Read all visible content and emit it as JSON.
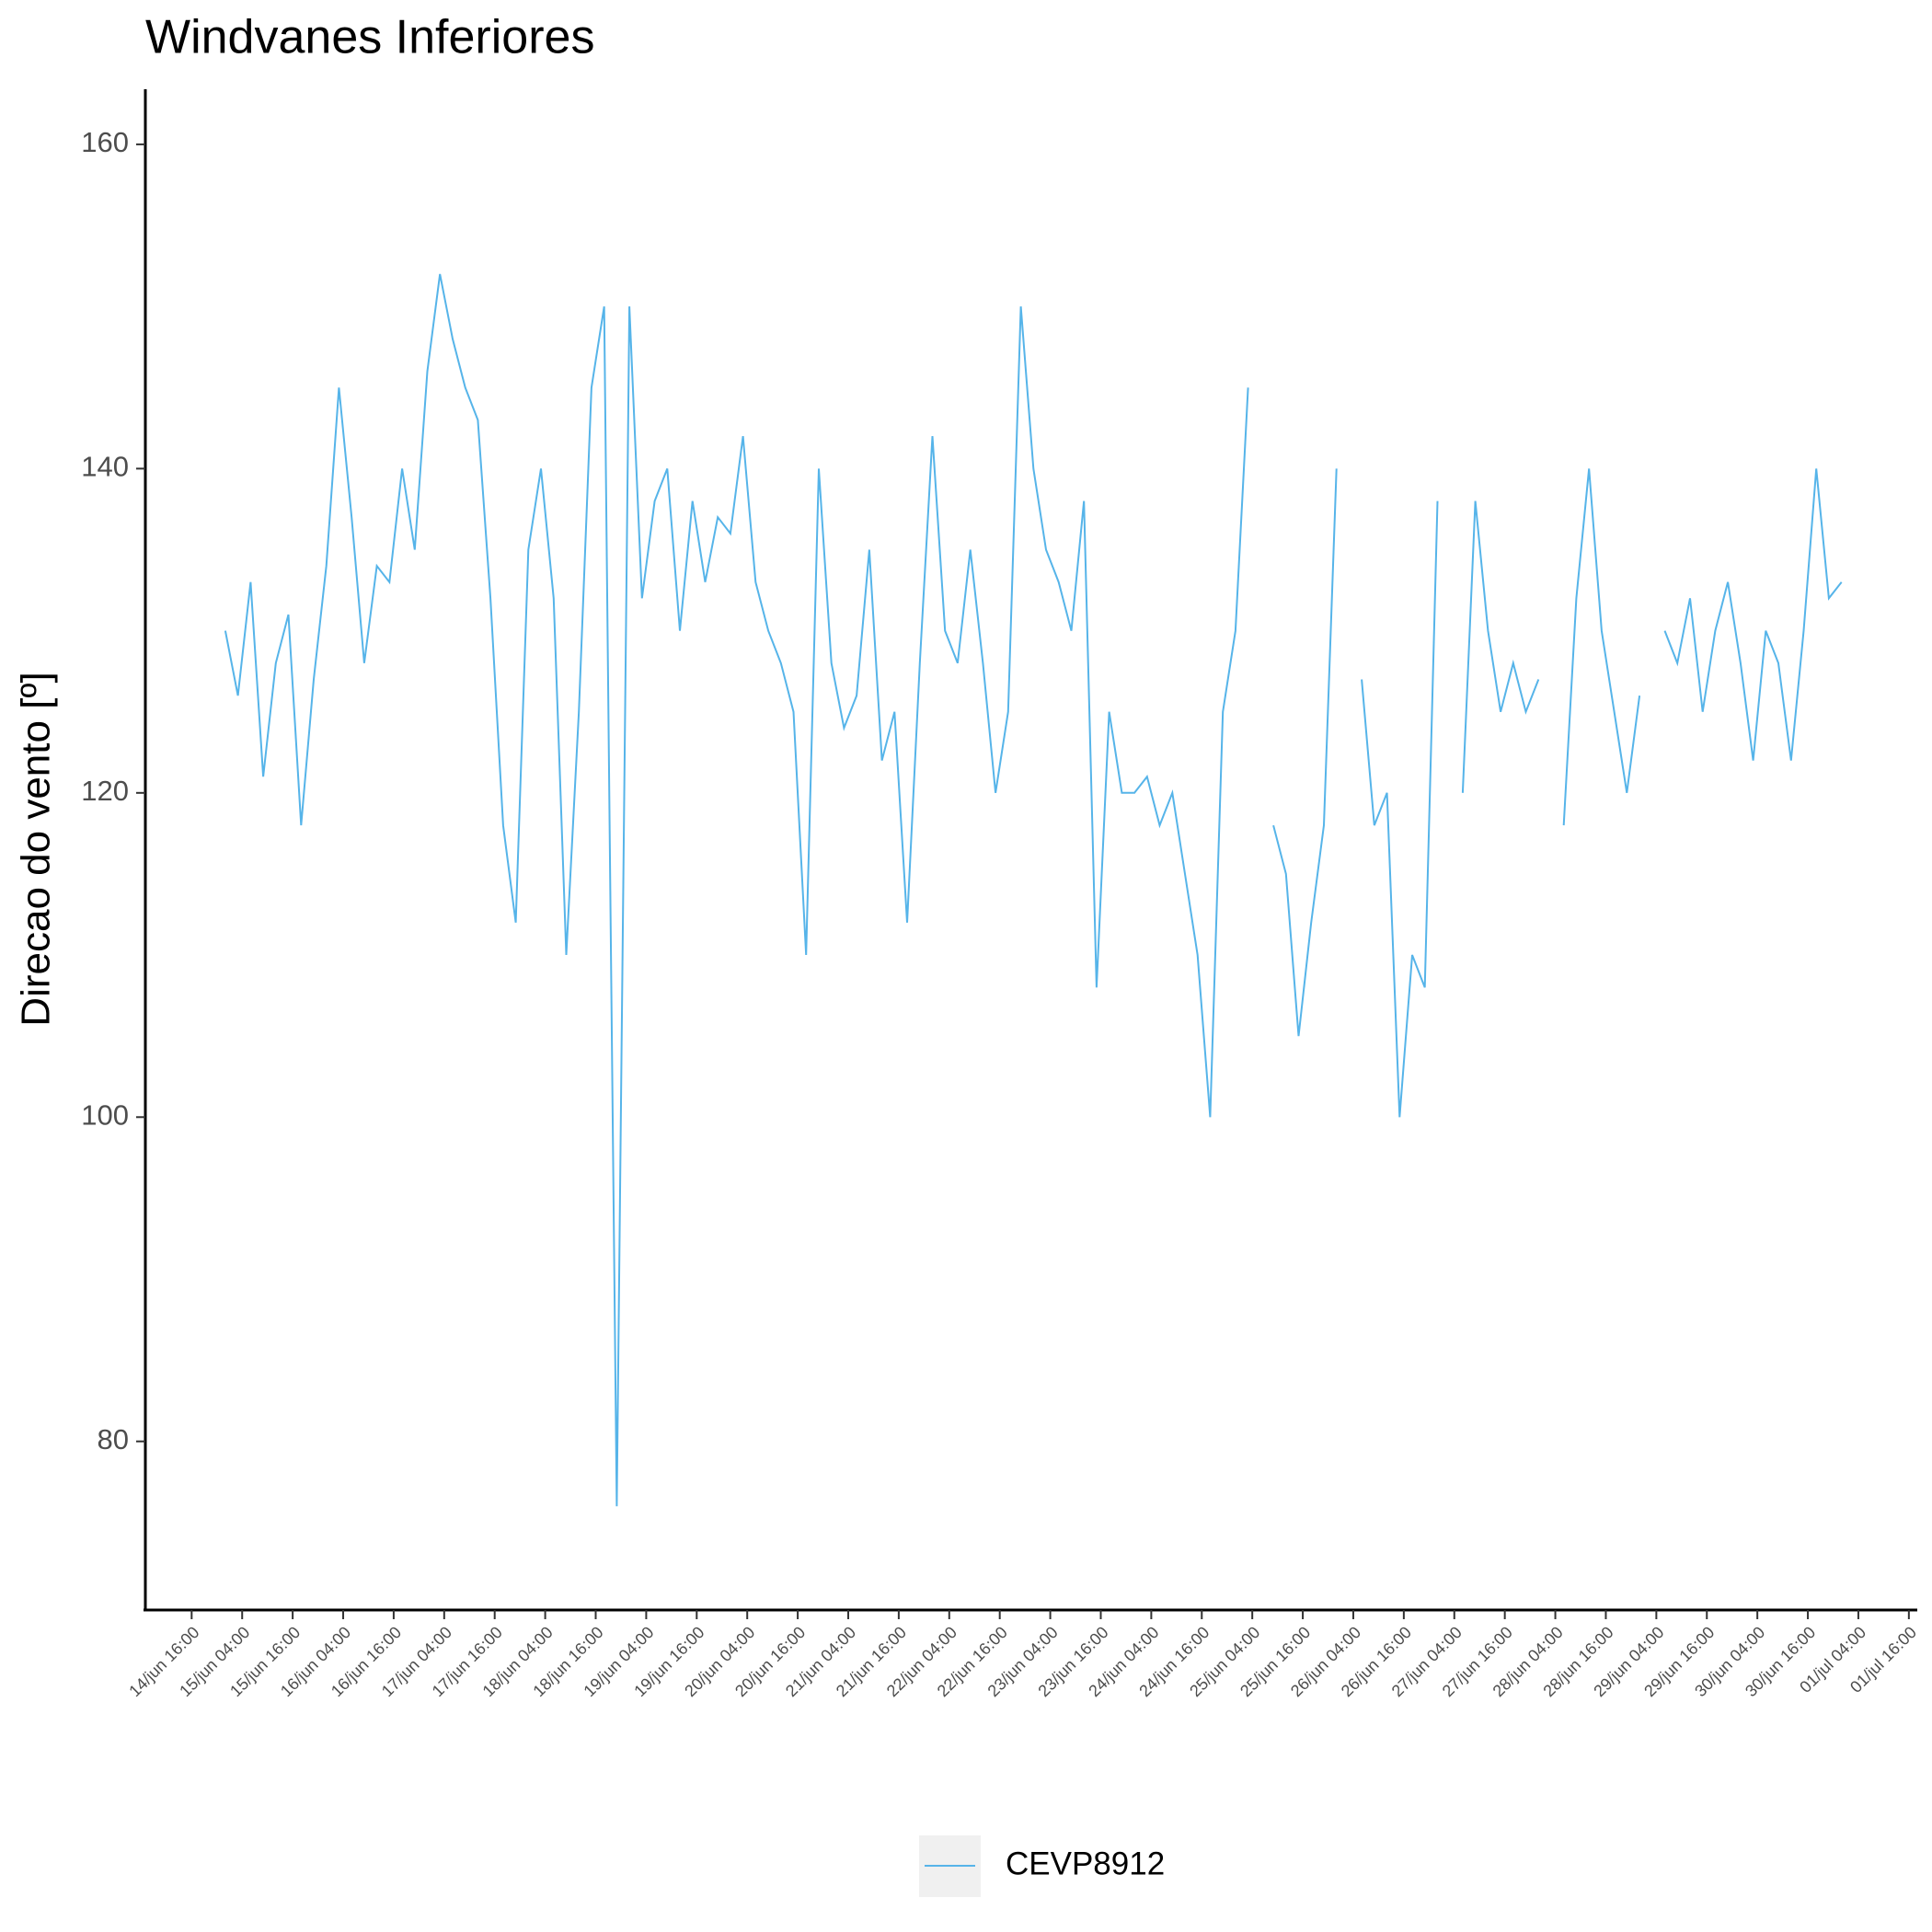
{
  "chart_data": {
    "type": "line",
    "title": "Windvanes Inferiores",
    "y_label": "Direcao do vento [º]",
    "x": [
      "15/jun 00:00",
      "15/jun 03:00",
      "15/jun 06:00",
      "15/jun 09:00",
      "15/jun 12:00",
      "15/jun 15:00",
      "15/jun 18:00",
      "15/jun 21:00",
      "16/jun 00:00",
      "16/jun 03:00",
      "16/jun 06:00",
      "16/jun 09:00",
      "16/jun 12:00",
      "16/jun 15:00",
      "16/jun 18:00",
      "16/jun 21:00",
      "17/jun 00:00",
      "17/jun 03:00",
      "17/jun 06:00",
      "17/jun 09:00",
      "17/jun 12:00",
      "17/jun 15:00",
      "17/jun 18:00",
      "17/jun 21:00",
      "18/jun 00:00",
      "18/jun 03:00",
      "18/jun 06:00",
      "18/jun 09:00",
      "18/jun 12:00",
      "18/jun 15:00",
      "18/jun 18:00",
      "18/jun 21:00",
      "19/jun 00:00",
      "19/jun 03:00",
      "19/jun 06:00",
      "19/jun 09:00",
      "19/jun 12:00",
      "19/jun 15:00",
      "19/jun 18:00",
      "19/jun 21:00",
      "20/jun 00:00",
      "20/jun 03:00",
      "20/jun 06:00",
      "20/jun 09:00",
      "20/jun 12:00",
      "20/jun 15:00",
      "20/jun 18:00",
      "20/jun 21:00",
      "21/jun 00:00",
      "21/jun 03:00",
      "21/jun 06:00",
      "21/jun 09:00",
      "21/jun 12:00",
      "21/jun 15:00",
      "21/jun 18:00",
      "21/jun 21:00",
      "22/jun 00:00",
      "22/jun 03:00",
      "22/jun 06:00",
      "22/jun 09:00",
      "22/jun 12:00",
      "22/jun 15:00",
      "22/jun 18:00",
      "22/jun 21:00",
      "23/jun 00:00",
      "23/jun 03:00",
      "23/jun 06:00",
      "23/jun 09:00",
      "23/jun 12:00",
      "23/jun 15:00",
      "23/jun 18:00",
      "23/jun 21:00",
      "24/jun 00:00",
      "24/jun 03:00",
      "24/jun 06:00",
      "24/jun 09:00",
      "24/jun 12:00",
      "24/jun 15:00",
      "24/jun 18:00",
      "24/jun 21:00",
      "25/jun 00:00",
      "25/jun 03:00",
      "25/jun 06:00",
      "25/jun 09:00",
      "25/jun 12:00",
      "25/jun 15:00",
      "25/jun 18:00",
      "25/jun 21:00",
      "26/jun 00:00",
      "26/jun 03:00",
      "26/jun 06:00",
      "26/jun 09:00",
      "26/jun 12:00",
      "26/jun 15:00",
      "26/jun 18:00",
      "26/jun 21:00",
      "27/jun 00:00",
      "27/jun 03:00",
      "27/jun 06:00",
      "27/jun 09:00",
      "27/jun 12:00",
      "27/jun 15:00",
      "27/jun 18:00",
      "27/jun 21:00",
      "28/jun 00:00",
      "28/jun 03:00",
      "28/jun 06:00",
      "28/jun 09:00",
      "28/jun 12:00",
      "28/jun 15:00",
      "28/jun 18:00",
      "28/jun 21:00",
      "29/jun 00:00",
      "29/jun 03:00",
      "29/jun 06:00",
      "29/jun 09:00",
      "29/jun 12:00",
      "29/jun 15:00",
      "29/jun 18:00",
      "29/jun 21:00",
      "30/jun 00:00",
      "30/jun 03:00",
      "30/jun 06:00",
      "30/jun 09:00",
      "30/jun 12:00",
      "30/jun 15:00",
      "30/jun 18:00",
      "30/jun 21:00",
      "01/jul 00:00"
    ],
    "series": [
      {
        "name": "CEVP8912",
        "color": "#56B4E9",
        "values": [
          130,
          126,
          133,
          121,
          128,
          131,
          118,
          127,
          134,
          145,
          137,
          128,
          134,
          133,
          140,
          135,
          146,
          152,
          148,
          145,
          143,
          132,
          118,
          112,
          135,
          140,
          132,
          110,
          125,
          145,
          150,
          76,
          150,
          132,
          138,
          140,
          130,
          138,
          133,
          137,
          136,
          142,
          133,
          130,
          128,
          125,
          110,
          140,
          128,
          124,
          126,
          135,
          122,
          125,
          112,
          128,
          142,
          130,
          128,
          135,
          128,
          120,
          125,
          150,
          140,
          135,
          133,
          130,
          138,
          108,
          125,
          120,
          120,
          121,
          118,
          120,
          115,
          110,
          100,
          125,
          130,
          145,
          null,
          118,
          115,
          105,
          112,
          118,
          140,
          null,
          127,
          118,
          120,
          100,
          110,
          108,
          138,
          null,
          120,
          138,
          130,
          125,
          128,
          125,
          127,
          null,
          118,
          132,
          140,
          130,
          125,
          120,
          126,
          null,
          130,
          128,
          132,
          125,
          130,
          133,
          128,
          122,
          130,
          128,
          122,
          130,
          140,
          132,
          133
        ]
      }
    ],
    "xlim": [
      "14/jun 05:00",
      "01/jul 18:00"
    ],
    "xticks": [
      "14/jun 16:00",
      "15/jun 04:00",
      "15/jun 16:00",
      "16/jun 04:00",
      "16/jun 16:00",
      "17/jun 04:00",
      "17/jun 16:00",
      "18/jun 04:00",
      "18/jun 16:00",
      "19/jun 04:00",
      "19/jun 16:00",
      "20/jun 04:00",
      "20/jun 16:00",
      "21/jun 04:00",
      "21/jun 16:00",
      "22/jun 04:00",
      "22/jun 16:00",
      "23/jun 04:00",
      "23/jun 16:00",
      "24/jun 04:00",
      "24/jun 16:00",
      "25/jun 04:00",
      "25/jun 16:00",
      "26/jun 04:00",
      "26/jun 16:00",
      "27/jun 04:00",
      "27/jun 16:00",
      "28/jun 04:00",
      "28/jun 16:00",
      "29/jun 04:00",
      "29/jun 16:00",
      "30/jun 04:00",
      "30/jun 16:00",
      "01/jul 04:00",
      "01/jul 16:00"
    ],
    "ylim": [
      69.6,
      163.4
    ],
    "yticks": [
      80,
      100,
      120,
      140,
      160
    ],
    "grid": false,
    "legend": "bottom"
  }
}
